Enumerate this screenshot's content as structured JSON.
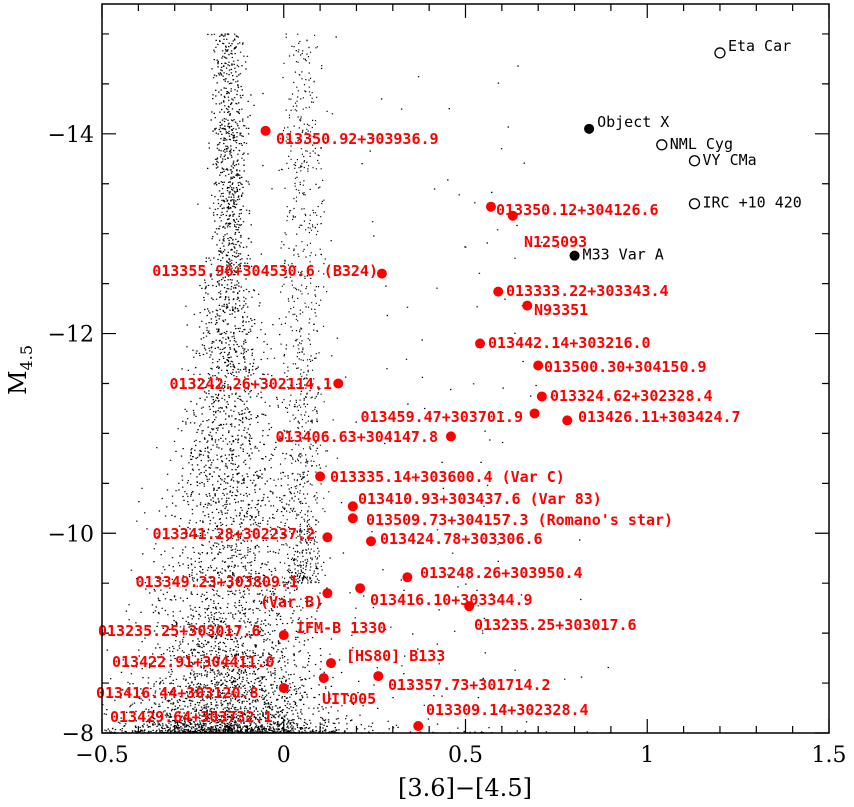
{
  "chart_data": {
    "type": "scatter",
    "xlabel": "[3.6]−[4.5]",
    "ylabel_main": "M",
    "ylabel_sub": "4.5",
    "xlim": [
      -0.5,
      1.5
    ],
    "ylim": [
      -8,
      -15.3
    ],
    "x_ticks": [
      {
        "value": -0.5,
        "label": "−0.5"
      },
      {
        "value": 0,
        "label": "0"
      },
      {
        "value": 0.5,
        "label": "0.5"
      },
      {
        "value": 1,
        "label": "1"
      },
      {
        "value": 1.5,
        "label": "1.5"
      }
    ],
    "y_ticks": [
      {
        "value": -14,
        "label": "−14"
      },
      {
        "value": -12,
        "label": "−12"
      },
      {
        "value": -10,
        "label": "−10"
      },
      {
        "value": -8,
        "label": "−8"
      }
    ],
    "colors": {
      "highlight": "#ff0000",
      "known": "#000000",
      "background": "#000000"
    },
    "open_points": [
      {
        "x": 1.2,
        "y": -14.81,
        "label": "Eta Car"
      },
      {
        "x": 1.04,
        "y": -13.89,
        "label": "NML Cyg"
      },
      {
        "x": 1.13,
        "y": -13.73,
        "label": "VY CMa"
      },
      {
        "x": 1.13,
        "y": -13.3,
        "label": "IRC +10 420"
      }
    ],
    "filled_black_points": [
      {
        "x": 0.84,
        "y": -14.05,
        "label": "Object X"
      },
      {
        "x": 0.8,
        "y": -12.78,
        "label": "M33 Var A"
      }
    ],
    "red_points": [
      {
        "x": -0.05,
        "y": -14.03,
        "label": "013350.92+303936.9"
      },
      {
        "x": 0.57,
        "y": -13.27,
        "label": "013350.12+304126.6"
      },
      {
        "x": 0.63,
        "y": -13.18,
        "label": "N125093"
      },
      {
        "x": 0.27,
        "y": -12.6,
        "label": "013355.96+304530.6 (B324)"
      },
      {
        "x": 0.59,
        "y": -12.42,
        "label": "013333.22+303343.4"
      },
      {
        "x": 0.67,
        "y": -12.28,
        "label": "N93351"
      },
      {
        "x": 0.54,
        "y": -11.9,
        "label": "013442.14+303216.0"
      },
      {
        "x": 0.7,
        "y": -11.68,
        "label": "013500.30+304150.9"
      },
      {
        "x": 0.15,
        "y": -11.5,
        "label": "013242.26+302114.1"
      },
      {
        "x": 0.71,
        "y": -11.37,
        "label": "013324.62+302328.4"
      },
      {
        "x": 0.69,
        "y": -11.2,
        "label": "013459.47+303701.9"
      },
      {
        "x": 0.78,
        "y": -11.13,
        "label": "013426.11+303424.7"
      },
      {
        "x": 0.46,
        "y": -10.97,
        "label": "013406.63+304147.8"
      },
      {
        "x": 0.1,
        "y": -10.57,
        "label": "013335.14+303600.4 (Var C)"
      },
      {
        "x": 0.19,
        "y": -10.27,
        "label": "013410.93+303437.6 (Var 83)"
      },
      {
        "x": 0.19,
        "y": -10.15,
        "label": "013509.73+304157.3 (Romano's star)"
      },
      {
        "x": 0.12,
        "y": -9.96,
        "label": "013341.28+302237.2"
      },
      {
        "x": 0.24,
        "y": -9.92,
        "label": "013424.78+303306.6"
      },
      {
        "x": 0.34,
        "y": -9.56,
        "label": "013248.26+303950.4"
      },
      {
        "x": 0.21,
        "y": -9.45,
        "label": "013416.10+303344.9"
      },
      {
        "x": 0.12,
        "y": -9.4,
        "label": "013349.23+303809.1 (Var B)"
      },
      {
        "x": 0.51,
        "y": -9.27,
        "label": "013235.25+303017.6"
      },
      {
        "x": 0.0,
        "y": -8.98,
        "label": "IFM-B 1330"
      },
      {
        "x": 0.13,
        "y": -8.7,
        "label": "[HS80] B133"
      },
      {
        "x": 0.26,
        "y": -8.57,
        "label": "013357.73+301714.2"
      },
      {
        "x": 0.11,
        "y": -8.55,
        "label": "UIT005"
      },
      {
        "x": 0.0,
        "y": -8.45,
        "label": ""
      },
      {
        "x": 0.37,
        "y": -8.07,
        "label": "013309.14+302328.4"
      }
    ],
    "background_labels": [
      {
        "text": "013235.25+303017.6"
      },
      {
        "text": "013422.91+304411.0"
      },
      {
        "text": "013416.44+303120.8"
      },
      {
        "text": "013429.64+303732.1"
      }
    ]
  }
}
